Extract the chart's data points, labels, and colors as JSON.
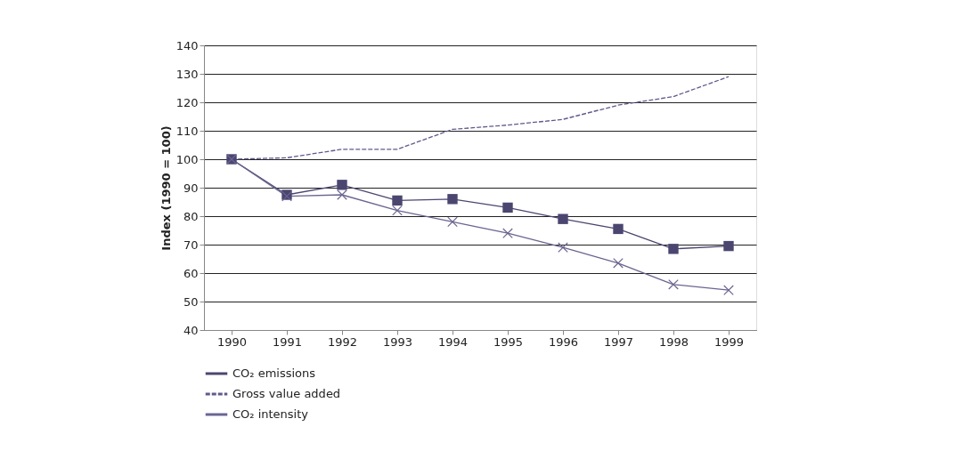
{
  "chart_data": {
    "type": "line",
    "ylabel": "Index (1990 = 100)",
    "categories": [
      "1990",
      "1991",
      "1992",
      "1993",
      "1994",
      "1995",
      "1996",
      "1997",
      "1998",
      "1999"
    ],
    "series": [
      {
        "name": "CO₂ emissions",
        "color": "#4b4670",
        "marker": "square",
        "line_style": "solid",
        "values": [
          100,
          87.5,
          91,
          85.5,
          86,
          83,
          79,
          75.5,
          68.5,
          69.5
        ]
      },
      {
        "name": "Gross value added",
        "color": "#5f5a8a",
        "marker": "none",
        "line_style": "dashed",
        "values": [
          100,
          100.5,
          103.5,
          103.5,
          110.5,
          112,
          114,
          119,
          122,
          129
        ]
      },
      {
        "name": "CO₂ intensity",
        "color": "#6a6590",
        "marker": "cross",
        "line_style": "solid",
        "values": [
          100,
          87,
          87.5,
          82,
          78,
          74,
          69,
          63.5,
          56,
          54
        ]
      }
    ],
    "ylim": [
      40,
      140
    ],
    "yticks": [
      40,
      50,
      60,
      70,
      80,
      90,
      100,
      110,
      120,
      130,
      140
    ],
    "grid": "y",
    "legend": "bottom left"
  }
}
